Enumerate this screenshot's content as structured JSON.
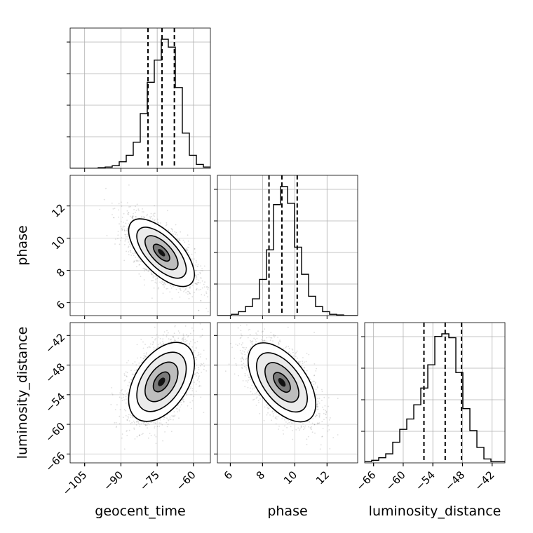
{
  "chart_data": {
    "type": "corner",
    "parameters": [
      "geocent_time",
      "phase",
      "luminosity_distance"
    ],
    "axis_labels": {
      "geocent_time": "geocent_time",
      "phase": "phase",
      "luminosity_distance": "luminosity_distance"
    },
    "ranges": {
      "geocent_time": [
        -111,
        -53
      ],
      "phase": [
        5.2,
        13.9
      ],
      "luminosity_distance": [
        -67.8,
        -39.4
      ]
    },
    "ticks": {
      "geocent_time": [
        -105,
        -90,
        -75,
        -60
      ],
      "phase": [
        6,
        8,
        10,
        12
      ],
      "luminosity_distance": [
        -66,
        -60,
        -54,
        -48,
        -42
      ]
    },
    "tick_labels": {
      "geocent_time": [
        "−105",
        "−90",
        "−75",
        "−60"
      ],
      "phase": [
        "6",
        "8",
        "10",
        "12"
      ],
      "luminosity_distance": [
        "−66",
        "−60",
        "−54",
        "−48",
        "−42"
      ]
    },
    "grid": true,
    "histograms": {
      "geocent_time": {
        "bin_edges": [
          -111,
          -108.1,
          -105.2,
          -102.3,
          -99.4,
          -96.5,
          -93.6,
          -90.7,
          -87.8,
          -84.9,
          -82.0,
          -79.1,
          -76.2,
          -73.3,
          -70.4,
          -67.5,
          -64.6,
          -61.7,
          -58.8,
          -55.9,
          -53.0
        ],
        "counts": [
          0,
          0,
          0,
          0,
          0.005,
          0.01,
          0.02,
          0.05,
          0.1,
          0.2,
          0.42,
          0.66,
          0.83,
          0.99,
          0.93,
          0.62,
          0.27,
          0.1,
          0.03,
          0.01
        ],
        "quantiles": [
          -78.8,
          -73.0,
          -67.9
        ]
      },
      "phase": {
        "bin_edges": [
          5.2,
          5.635,
          6.07,
          6.505,
          6.94,
          7.375,
          7.81,
          8.245,
          8.68,
          9.115,
          9.55,
          9.985,
          10.42,
          10.855,
          11.29,
          11.725,
          12.16,
          12.595,
          13.03,
          13.465,
          13.9
        ],
        "counts": [
          0,
          0,
          0.01,
          0.03,
          0.07,
          0.13,
          0.28,
          0.51,
          0.86,
          1.0,
          0.87,
          0.53,
          0.32,
          0.15,
          0.07,
          0.03,
          0.01,
          0.005,
          0,
          0
        ],
        "quantiles": [
          8.4,
          9.2,
          10.15
        ]
      },
      "luminosity_distance": {
        "bin_edges": [
          -67.8,
          -66.38,
          -64.96,
          -63.54,
          -62.12,
          -60.7,
          -59.28,
          -57.86,
          -56.44,
          -55.02,
          -53.6,
          -52.18,
          -50.76,
          -49.34,
          -47.92,
          -46.5,
          -45.08,
          -43.66,
          -42.24,
          -40.82,
          -39.4
        ],
        "counts": [
          0.01,
          0.02,
          0.04,
          0.07,
          0.16,
          0.26,
          0.34,
          0.45,
          0.58,
          0.76,
          0.98,
          1.0,
          0.97,
          0.7,
          0.42,
          0.25,
          0.12,
          0.03,
          0.01,
          0.01
        ],
        "quantiles": [
          -55.8,
          -51.5,
          -48.2
        ]
      }
    },
    "joint": {
      "geocent_time__phase": {
        "center": [
          -73.2,
          9.1
        ],
        "sigma": [
          6.8,
          1.05
        ],
        "correlation": -0.65
      },
      "geocent_time__luminosity_distance": {
        "center": [
          -73.2,
          -51.4
        ],
        "sigma": [
          6.8,
          4.0
        ],
        "correlation": 0.45
      },
      "phase__luminosity_distance": {
        "center": [
          9.2,
          -51.5
        ],
        "sigma": [
          1.05,
          4.0
        ],
        "correlation": -0.55
      }
    },
    "contour_levels_sigma": [
      0.5,
      1.0,
      1.5,
      2.0
    ]
  }
}
